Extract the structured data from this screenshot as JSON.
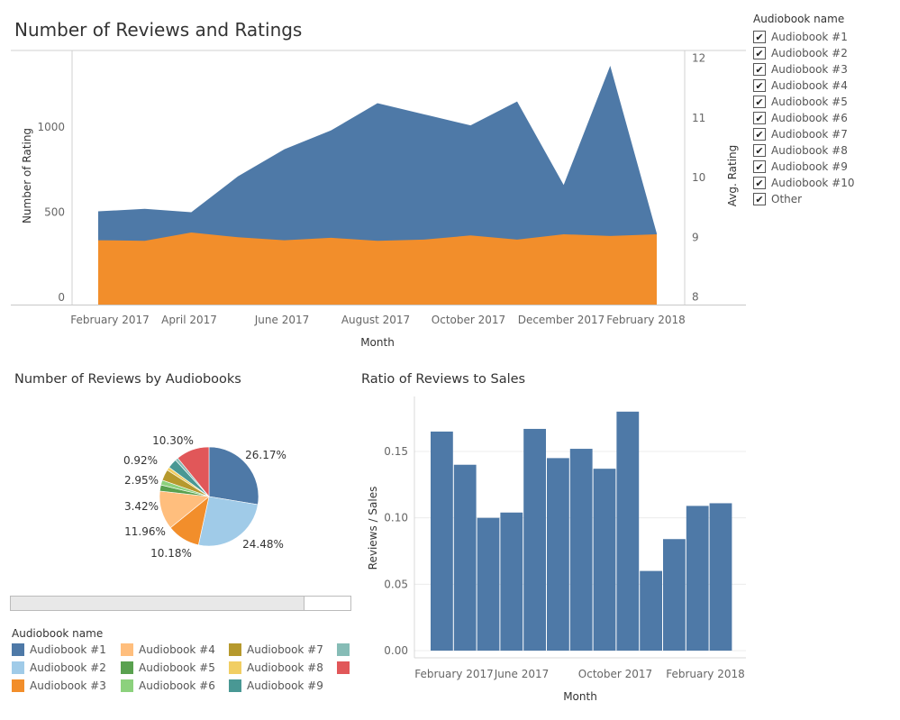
{
  "dashboard": {
    "top_title": "Number of Reviews and Ratings",
    "pie_title": "Number of Reviews by Audiobooks",
    "bar_title": "Ratio of Reviews to Sales"
  },
  "filter": {
    "title": "Audiobook name",
    "items": [
      "Audiobook #1",
      "Audiobook #2",
      "Audiobook #3",
      "Audiobook #4",
      "Audiobook #5",
      "Audiobook #6",
      "Audiobook #7",
      "Audiobook #8",
      "Audiobook #9",
      "Audiobook #10",
      "Other"
    ],
    "checked": [
      true,
      true,
      true,
      true,
      true,
      true,
      true,
      true,
      true,
      true,
      true
    ]
  },
  "legend": {
    "title": "Audiobook name",
    "items": [
      {
        "label": "Audiobook #1",
        "color": "#4e79a7"
      },
      {
        "label": "Audiobook #2",
        "color": "#a0cbe8"
      },
      {
        "label": "Audiobook #3",
        "color": "#f28e2b"
      },
      {
        "label": "Audiobook #4",
        "color": "#ffbe7d"
      },
      {
        "label": "Audiobook #5",
        "color": "#59a14f"
      },
      {
        "label": "Audiobook #6",
        "color": "#8cd17d"
      },
      {
        "label": "Audiobook #7",
        "color": "#b6992d"
      },
      {
        "label": "Audiobook #8",
        "color": "#f1ce63"
      },
      {
        "label": "Audiobook #9",
        "color": "#499894"
      },
      {
        "label": "",
        "color": "#86bcb6"
      },
      {
        "label": "",
        "color": "#e15759"
      }
    ]
  },
  "chart_data": [
    {
      "type": "area",
      "title": "Number of Reviews and Ratings",
      "xlabel": "Month",
      "ylabel": "Number of Rating",
      "ylabel_right": "Avg. Rating",
      "x_ticks": [
        "February 2017",
        "April 2017",
        "June 2017",
        "August 2017",
        "October 2017",
        "December 2017",
        "February 2018"
      ],
      "y_ticks": [
        "0",
        "500",
        "1000"
      ],
      "y_ticks_right": [
        "8",
        "9",
        "10",
        "11",
        "12"
      ],
      "x": [
        "2017-02",
        "2017-03",
        "2017-04",
        "2017-05",
        "2017-06",
        "2017-07",
        "2017-08",
        "2017-09",
        "2017-10",
        "2017-11",
        "2017-12",
        "2018-01",
        "2018-02"
      ],
      "series": [
        {
          "name": "Number of Rating",
          "color": "#4e79a7",
          "axis": "left",
          "values": [
            505,
            520,
            500,
            710,
            870,
            980,
            1140,
            1075,
            1010,
            1150,
            660,
            1360,
            375
          ]
        },
        {
          "name": "Avg. Rating",
          "color": "#f28e2b",
          "axis": "right",
          "values": [
            8.95,
            8.94,
            9.08,
            9.0,
            8.95,
            8.99,
            8.94,
            8.96,
            9.03,
            8.96,
            9.05,
            9.02,
            9.05
          ]
        }
      ],
      "ylim": [
        0,
        1380
      ],
      "ylim_right": [
        7.9,
        12.1
      ]
    },
    {
      "type": "pie",
      "title": "Number of Reviews by Audiobooks",
      "labels": [
        "Audiobook #1",
        "Audiobook #2",
        "Audiobook #3",
        "Audiobook #4",
        "Audiobook #5",
        "Audiobook #6",
        "Audiobook #7",
        "Audiobook #8",
        "Audiobook #9",
        "",
        "Other"
      ],
      "values": [
        26.17,
        24.48,
        10.18,
        11.96,
        1.9,
        1.52,
        3.42,
        1.02,
        2.95,
        0.92,
        10.3
      ],
      "colors": [
        "#4e79a7",
        "#a0cbe8",
        "#f28e2b",
        "#ffbe7d",
        "#59a14f",
        "#8cd17d",
        "#b6992d",
        "#f1ce63",
        "#499894",
        "#86bcb6",
        "#e15759"
      ],
      "shown_labels": {
        "0": "26.17%",
        "1": "24.48%",
        "2": "10.18%",
        "3": "11.96%",
        "6": "3.42%",
        "8": "2.95%",
        "9": "0.92%",
        "10": "10.30%"
      }
    },
    {
      "type": "bar",
      "title": "Ratio of Reviews to Sales",
      "xlabel": "Month",
      "ylabel": "Reviews / Sales",
      "x_ticks": [
        "February 2017",
        "June 2017",
        "October 2017",
        "February 2018"
      ],
      "y_ticks": [
        "0.00",
        "0.05",
        "0.10",
        "0.15"
      ],
      "categories": [
        "2017-02",
        "2017-03",
        "2017-04",
        "2017-05",
        "2017-06",
        "2017-07",
        "2017-08",
        "2017-09",
        "2017-10",
        "2017-11",
        "2017-12",
        "2018-01",
        "2018-02"
      ],
      "values": [
        0.165,
        0.14,
        0.1,
        0.104,
        0.167,
        0.145,
        0.152,
        0.137,
        0.18,
        0.06,
        0.084,
        0.109,
        0.111
      ],
      "color": "#4e79a7",
      "ylim": [
        0,
        0.19
      ]
    }
  ]
}
